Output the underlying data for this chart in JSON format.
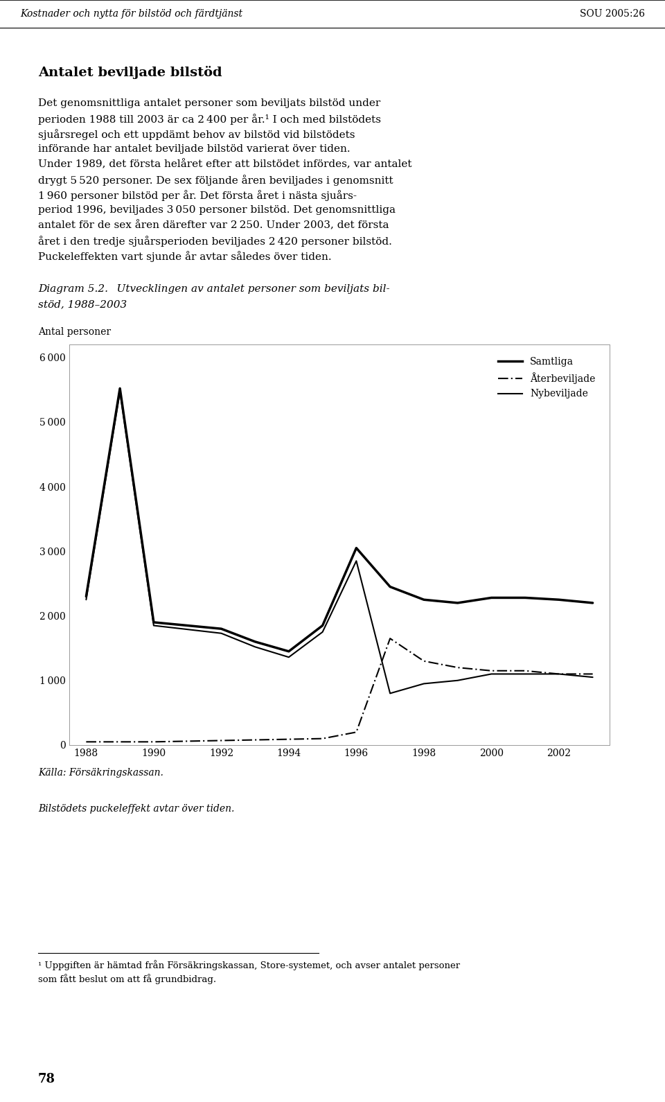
{
  "title_header": "Kostnader och nytta för bilstöd och färdtjänst",
  "title_right": "SOU 2005:26",
  "ylabel": "Antal personer",
  "xlabel_caption": "Källa: Försäkringskassan.",
  "caption2": "Bilstödets puckeleffekt avtar över tiden.",
  "footnote_line1": "¹ Uppgiften är hämtad från Försäkringskassan, Store-systemet, och avser antalet personer",
  "footnote_line2": "som fått beslut om att få grundbidrag.",
  "page_number": "78",
  "years": [
    1988,
    1989,
    1990,
    1991,
    1992,
    1993,
    1994,
    1995,
    1996,
    1997,
    1998,
    1999,
    2000,
    2001,
    2002,
    2003
  ],
  "samtliga": [
    2300,
    5520,
    1900,
    1850,
    1800,
    1600,
    1450,
    1850,
    3050,
    2450,
    2250,
    2200,
    2280,
    2280,
    2250,
    2200
  ],
  "aterbeviljade": [
    50,
    50,
    50,
    60,
    70,
    80,
    90,
    100,
    200,
    1650,
    1300,
    1200,
    1150,
    1150,
    1100,
    1100
  ],
  "nybeviljade": [
    2250,
    5470,
    1850,
    1790,
    1730,
    1520,
    1360,
    1750,
    2850,
    800,
    950,
    1000,
    1100,
    1100,
    1100,
    1050
  ],
  "ytick_vals": [
    0,
    1000,
    2000,
    3000,
    4000,
    5000,
    6000
  ],
  "xtick_vals": [
    1988,
    1990,
    1992,
    1994,
    1996,
    1998,
    2000,
    2002
  ],
  "samtliga_lw": 2.5,
  "aterbeviljade_lw": 1.5,
  "nybeviljade_lw": 1.5,
  "background_color": "#ffffff",
  "legend_samtliga": "Samtliga",
  "legend_aterbeviljade": "Återbeviljade",
  "legend_nybeviljade": "Nybeviljade"
}
